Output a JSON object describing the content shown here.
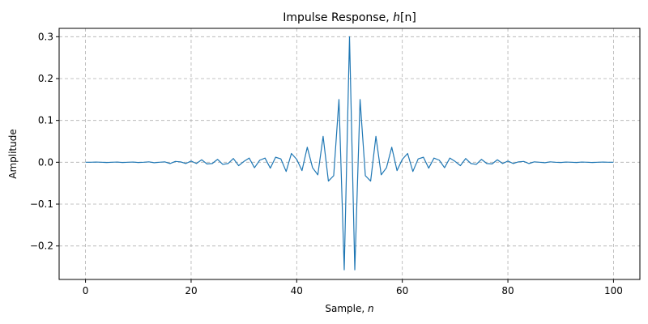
{
  "chart_data": {
    "type": "line",
    "title": "Impulse Response, h[n]",
    "title_main": "Impulse Response, ",
    "title_var": "h",
    "title_bracket": "[n]",
    "xlabel": "Sample, ",
    "xlabel_var": "n",
    "ylabel": "Amplitude",
    "xlim": [
      -5,
      105
    ],
    "ylim": [
      -0.28,
      0.32
    ],
    "x_ticks": [
      0,
      20,
      40,
      60,
      80,
      100
    ],
    "x_tick_labels": [
      "0",
      "20",
      "40",
      "60",
      "80",
      "100"
    ],
    "y_ticks": [
      -0.2,
      -0.1,
      0.0,
      0.1,
      0.2,
      0.3
    ],
    "y_tick_labels": [
      "−0.2",
      "−0.1",
      "0.0",
      "0.1",
      "0.2",
      "0.3"
    ],
    "grid": true,
    "series": [
      {
        "color": "#1f77b4",
        "x": [
          0,
          1,
          2,
          3,
          4,
          5,
          6,
          7,
          8,
          9,
          10,
          11,
          12,
          13,
          14,
          15,
          16,
          17,
          18,
          19,
          20,
          21,
          22,
          23,
          24,
          25,
          26,
          27,
          28,
          29,
          30,
          31,
          32,
          33,
          34,
          35,
          36,
          37,
          38,
          39,
          40,
          41,
          42,
          43,
          44,
          45,
          46,
          47,
          48,
          49,
          50,
          51,
          52,
          53,
          54,
          55,
          56,
          57,
          58,
          59,
          60,
          61,
          62,
          63,
          64,
          65,
          66,
          67,
          68,
          69,
          70,
          71,
          72,
          73,
          74,
          75,
          76,
          77,
          78,
          79,
          80,
          81,
          82,
          83,
          84,
          85,
          86,
          87,
          88,
          89,
          90,
          91,
          92,
          93,
          94,
          95,
          96,
          97,
          98,
          99,
          100
        ],
        "y": [
          0.0,
          0.0,
          0.0005,
          0.0,
          -0.0005,
          0.0,
          0.0005,
          -0.0005,
          0.0,
          0.0005,
          -0.0005,
          0.0,
          0.001,
          -0.001,
          0.0,
          0.001,
          -0.003,
          0.002,
          0.001,
          -0.003,
          0.003,
          -0.003,
          0.006,
          -0.004,
          -0.003,
          0.007,
          -0.005,
          -0.003,
          0.009,
          -0.008,
          0.002,
          0.01,
          -0.013,
          0.005,
          0.01,
          -0.014,
          0.012,
          0.008,
          -0.022,
          0.021,
          0.007,
          -0.02,
          0.036,
          -0.013,
          -0.03,
          0.062,
          -0.045,
          -0.032,
          0.15,
          -0.257,
          0.3,
          -0.257,
          0.15,
          -0.032,
          -0.045,
          0.062,
          -0.03,
          -0.013,
          0.036,
          -0.02,
          0.007,
          0.021,
          -0.022,
          0.008,
          0.012,
          -0.014,
          0.01,
          0.005,
          -0.013,
          0.01,
          0.002,
          -0.008,
          0.009,
          -0.003,
          -0.005,
          0.007,
          -0.003,
          -0.004,
          0.006,
          -0.003,
          0.003,
          -0.003,
          0.001,
          0.002,
          -0.003,
          0.001,
          0.0,
          -0.001,
          0.001,
          0.0,
          -0.0005,
          0.0005,
          0.0,
          -0.0005,
          0.0005,
          0.0,
          -0.0005,
          0.0,
          0.0005,
          0.0,
          0.0
        ]
      }
    ]
  }
}
